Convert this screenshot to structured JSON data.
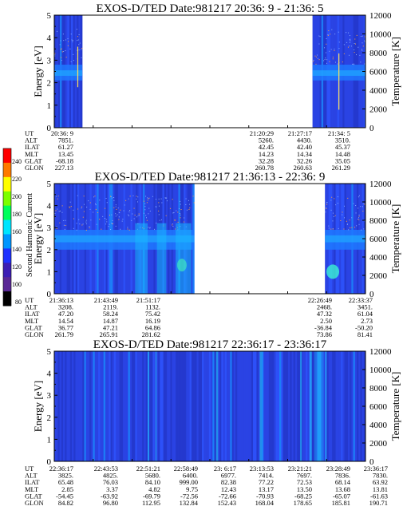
{
  "chart_data": {
    "type": "heatmap",
    "colorbar": {
      "label": "Second Harmonic Current",
      "ticks": [
        "240",
        "220",
        "200",
        "180",
        "160",
        "140",
        "120",
        "100",
        "80"
      ],
      "colors": [
        "#ff0000",
        "#ff7a00",
        "#ffff00",
        "#7cff00",
        "#00ff5a",
        "#00e5ff",
        "#0096ff",
        "#1e32ff",
        "#3c1eb4",
        "#5a2896",
        "#000000"
      ]
    },
    "panels": [
      {
        "title": "EXOS-D/TED   Date:981217  20:36: 9 - 21:36: 5",
        "ylabel": "Energy [eV]",
        "y2label": "Temperature [K]",
        "yticks": [
          "0",
          "1",
          "2",
          "3",
          "4",
          "5"
        ],
        "y2ticks": [
          "0",
          "2000",
          "4000",
          "6000",
          "8000",
          "10000",
          "12000"
        ],
        "data_intervals": [
          [
            0,
            0.09
          ],
          [
            0.83,
            1.0
          ]
        ],
        "band_energy_ev": [
          2.1,
          2.8
        ],
        "ephemeris": [
          {
            "label": "UT",
            "values": [
              "20:36: 9",
              "",
              "",
              "",
              "",
              "21:20:29",
              "21:27:17",
              "21:34: 5"
            ]
          },
          {
            "label": "ALT",
            "values": [
              "7851.",
              "",
              "",
              "",
              "",
              "5260.",
              "4430.",
              "3510."
            ]
          },
          {
            "label": "ILAT",
            "values": [
              "61.27",
              "",
              "",
              "",
              "",
              "42.45",
              "42.40",
              "45.37"
            ]
          },
          {
            "label": "MLT",
            "values": [
              "13.45",
              "",
              "",
              "",
              "",
              "14.23",
              "14.34",
              "14.48"
            ]
          },
          {
            "label": "GLAT",
            "values": [
              "-68.18",
              "",
              "",
              "",
              "",
              "32.28",
              "32.26",
              "35.05"
            ]
          },
          {
            "label": "GLON",
            "values": [
              "227.13",
              "",
              "",
              "",
              "",
              "260.78",
              "260.63",
              "261.29"
            ]
          }
        ]
      },
      {
        "title": "EXOS-D/TED   Date:981217  21:36:13 - 22:36: 9",
        "ylabel": "Energy [eV]",
        "y2label": "Temperature [K]",
        "yticks": [
          "0",
          "1",
          "2",
          "3",
          "4",
          "5"
        ],
        "y2ticks": [
          "0",
          "2000",
          "4000",
          "6000",
          "8000",
          "10000",
          "12000"
        ],
        "data_intervals": [
          [
            0,
            0.45
          ],
          [
            0.87,
            1.0
          ]
        ],
        "band_energy_ev": [
          2.0,
          2.9
        ],
        "ephemeris": [
          {
            "label": "UT",
            "values": [
              "21:36:13",
              "21:43:49",
              "21:51:17",
              "",
              "",
              "",
              "22:26:49",
              "22:33:37"
            ]
          },
          {
            "label": "ALT",
            "values": [
              "3208.",
              "2119.",
              "1132.",
              "",
              "",
              "",
              "2468.",
              "3451."
            ]
          },
          {
            "label": "ILAT",
            "values": [
              "47.20",
              "58.24",
              "75.42",
              "",
              "",
              "",
              "47.32",
              "61.04"
            ]
          },
          {
            "label": "MLT",
            "values": [
              "14.54",
              "14.87",
              "16.19",
              "",
              "",
              "",
              "2.50",
              "2.73"
            ]
          },
          {
            "label": "GLAT",
            "values": [
              "36.77",
              "47.21",
              "64.86",
              "",
              "",
              "",
              "-36.84",
              "-50.20"
            ]
          },
          {
            "label": "GLON",
            "values": [
              "261.79",
              "265.91",
              "281.62",
              "",
              "",
              "",
              "73.86",
              "81.41"
            ]
          }
        ]
      },
      {
        "title": "EXOS-D/TED   Date:981217  22:36:17 - 23:36:17",
        "ylabel": "Energy [eV]",
        "y2label": "Temperature [K]",
        "yticks": [
          "0",
          "1",
          "2",
          "3",
          "4",
          "5"
        ],
        "y2ticks": [
          "0",
          "2000",
          "4000",
          "6000",
          "8000",
          "10000",
          "12000"
        ],
        "data_intervals": [
          [
            0,
            1.0
          ]
        ],
        "band_energy_ev": [
          0,
          5
        ],
        "ephemeris": [
          {
            "label": "UT",
            "values": [
              "22:36:17",
              "22:43:53",
              "22:51:21",
              "22:58:49",
              "23: 6:17",
              "23:13:53",
              "23:21:21",
              "23:28:49",
              "23:36:17"
            ]
          },
          {
            "label": "ALT",
            "values": [
              "3825.",
              "4825.",
              "5680.",
              "6400.",
              "6977.",
              "7414.",
              "7697.",
              "7836.",
              "7830."
            ]
          },
          {
            "label": "ILAT",
            "values": [
              "65.48",
              "76.03",
              "84.10",
              "999.00",
              "82.38",
              "77.22",
              "72.53",
              "68.14",
              "63.92"
            ]
          },
          {
            "label": "MLT",
            "values": [
              "2.85",
              "3.37",
              "4.82",
              "9.75",
              "12.43",
              "13.17",
              "13.50",
              "13.68",
              "13.81"
            ]
          },
          {
            "label": "GLAT",
            "values": [
              "-54.45",
              "-63.92",
              "-69.79",
              "-72.56",
              "-72.66",
              "-70.93",
              "-68.25",
              "-65.07",
              "-61.63"
            ]
          },
          {
            "label": "GLON",
            "values": [
              "84.82",
              "96.80",
              "112.95",
              "132.84",
              "152.43",
              "168.04",
              "178.65",
              "185.81",
              "190.71"
            ]
          }
        ]
      }
    ]
  }
}
